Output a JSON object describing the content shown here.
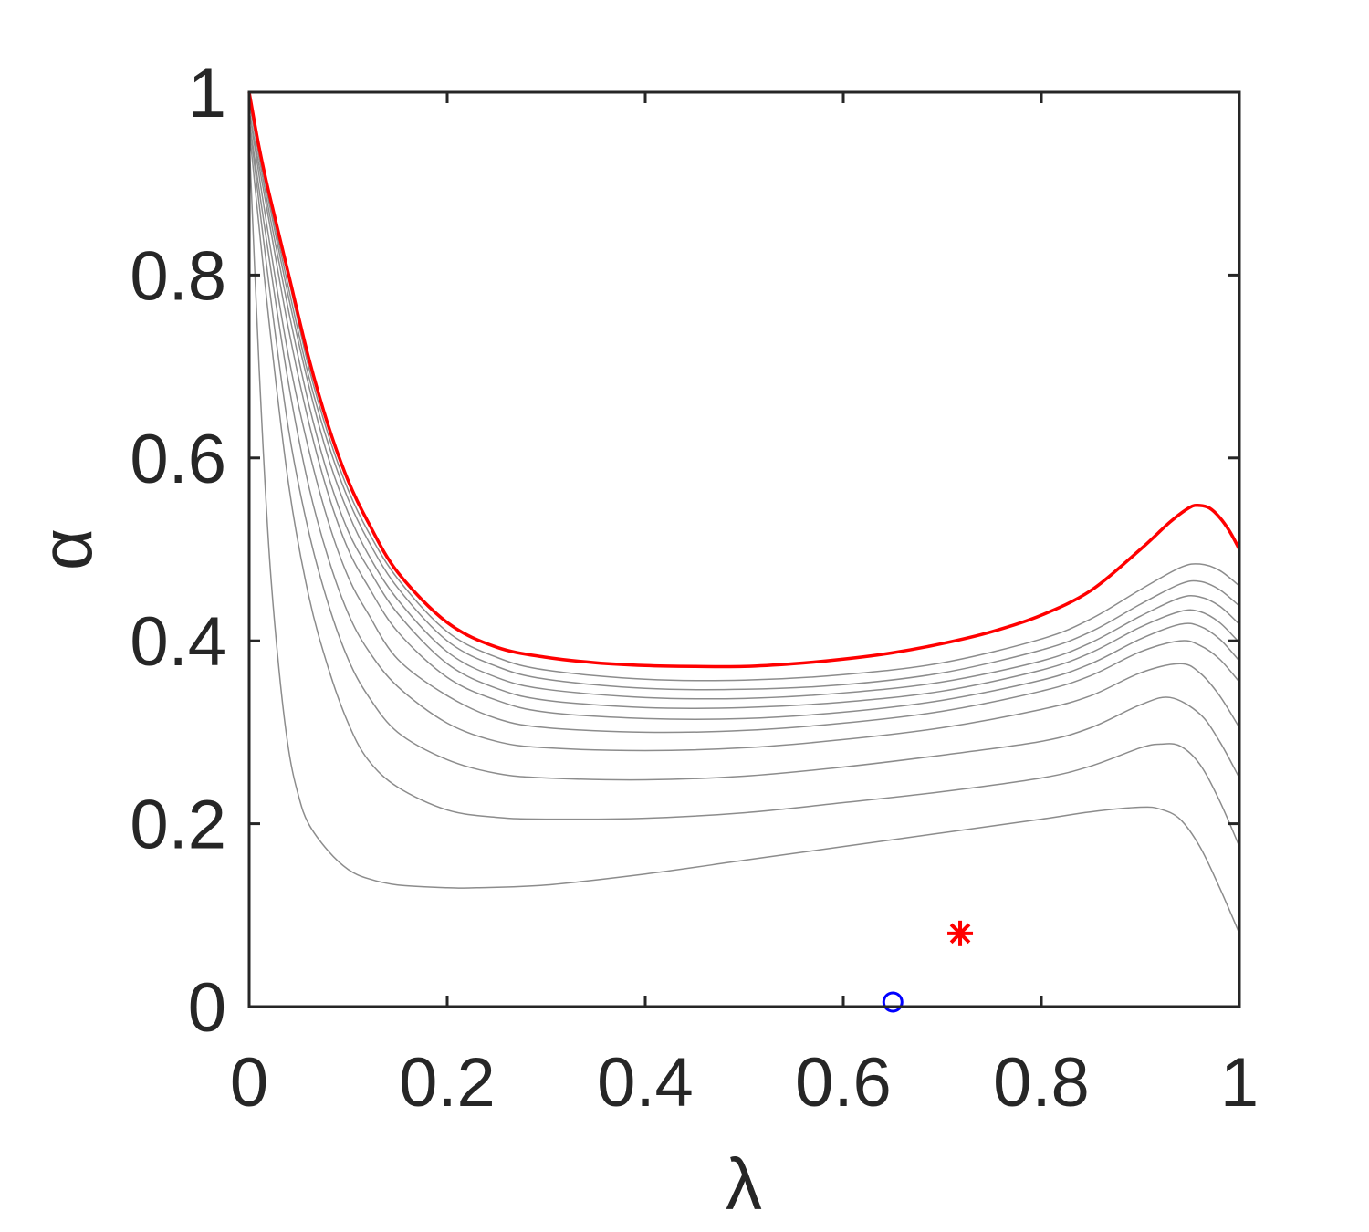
{
  "chart_data": {
    "type": "line",
    "title": "",
    "xlabel": "λ",
    "ylabel": "α",
    "xlim": [
      0,
      1
    ],
    "ylim": [
      0,
      1
    ],
    "xticks": [
      "0",
      "0.2",
      "0.4",
      "0.6",
      "0.8",
      "1"
    ],
    "yticks": [
      "0",
      "0.2",
      "0.4",
      "0.6",
      "0.8",
      "1"
    ],
    "grid": false,
    "series": [
      {
        "color": "#8c8c8c",
        "x": [
          0,
          0.01,
          0.02,
          0.03,
          0.04,
          0.05,
          0.06,
          0.08,
          0.1,
          0.12,
          0.15,
          0.2,
          0.23,
          0.3,
          0.4,
          0.5,
          0.6,
          0.7,
          0.8,
          0.85,
          0.9,
          0.92,
          0.94,
          0.96,
          0.98,
          1.0
        ],
        "y": [
          0.95,
          0.7,
          0.5,
          0.37,
          0.28,
          0.23,
          0.2,
          0.17,
          0.15,
          0.14,
          0.133,
          0.13,
          0.13,
          0.133,
          0.145,
          0.16,
          0.175,
          0.19,
          0.205,
          0.213,
          0.218,
          0.216,
          0.205,
          0.175,
          0.13,
          0.08
        ]
      },
      {
        "color": "#8c8c8c",
        "x": [
          0,
          0.02,
          0.04,
          0.06,
          0.08,
          0.1,
          0.12,
          0.15,
          0.2,
          0.25,
          0.3,
          0.4,
          0.5,
          0.6,
          0.7,
          0.8,
          0.85,
          0.9,
          0.92,
          0.94,
          0.96,
          0.98,
          1.0
        ],
        "y": [
          0.96,
          0.75,
          0.57,
          0.45,
          0.37,
          0.31,
          0.27,
          0.24,
          0.215,
          0.207,
          0.205,
          0.206,
          0.212,
          0.223,
          0.235,
          0.25,
          0.263,
          0.283,
          0.287,
          0.285,
          0.265,
          0.225,
          0.175
        ]
      },
      {
        "color": "#8c8c8c",
        "x": [
          0,
          0.02,
          0.04,
          0.06,
          0.08,
          0.1,
          0.12,
          0.15,
          0.2,
          0.25,
          0.3,
          0.4,
          0.5,
          0.6,
          0.7,
          0.8,
          0.85,
          0.9,
          0.93,
          0.96,
          0.98,
          1.0
        ],
        "y": [
          0.97,
          0.79,
          0.63,
          0.52,
          0.44,
          0.38,
          0.34,
          0.3,
          0.27,
          0.255,
          0.25,
          0.248,
          0.252,
          0.262,
          0.275,
          0.29,
          0.305,
          0.33,
          0.338,
          0.32,
          0.29,
          0.25
        ]
      },
      {
        "color": "#8c8c8c",
        "x": [
          0,
          0.02,
          0.04,
          0.06,
          0.08,
          0.1,
          0.12,
          0.15,
          0.2,
          0.25,
          0.3,
          0.4,
          0.5,
          0.6,
          0.7,
          0.8,
          0.85,
          0.9,
          0.94,
          0.96,
          0.98,
          1.0
        ],
        "y": [
          0.97,
          0.82,
          0.68,
          0.57,
          0.49,
          0.43,
          0.39,
          0.35,
          0.31,
          0.29,
          0.283,
          0.28,
          0.283,
          0.292,
          0.305,
          0.325,
          0.34,
          0.365,
          0.375,
          0.365,
          0.34,
          0.305
        ]
      },
      {
        "color": "#8c8c8c",
        "x": [
          0,
          0.02,
          0.04,
          0.06,
          0.08,
          0.1,
          0.12,
          0.15,
          0.2,
          0.25,
          0.3,
          0.4,
          0.5,
          0.6,
          0.7,
          0.8,
          0.85,
          0.9,
          0.94,
          0.96,
          0.98,
          1.0
        ],
        "y": [
          0.98,
          0.84,
          0.71,
          0.61,
          0.53,
          0.47,
          0.43,
          0.38,
          0.34,
          0.315,
          0.305,
          0.3,
          0.302,
          0.31,
          0.323,
          0.345,
          0.362,
          0.388,
          0.4,
          0.395,
          0.38,
          0.355
        ]
      },
      {
        "color": "#8c8c8c",
        "x": [
          0,
          0.02,
          0.04,
          0.06,
          0.08,
          0.1,
          0.12,
          0.15,
          0.2,
          0.25,
          0.3,
          0.4,
          0.5,
          0.6,
          0.7,
          0.8,
          0.85,
          0.9,
          0.94,
          0.96,
          0.98,
          1.0
        ],
        "y": [
          0.98,
          0.86,
          0.74,
          0.64,
          0.56,
          0.5,
          0.46,
          0.41,
          0.36,
          0.335,
          0.322,
          0.315,
          0.315,
          0.322,
          0.335,
          0.357,
          0.375,
          0.402,
          0.418,
          0.416,
          0.402,
          0.378
        ]
      },
      {
        "color": "#8c8c8c",
        "x": [
          0,
          0.02,
          0.04,
          0.06,
          0.08,
          0.1,
          0.12,
          0.15,
          0.2,
          0.25,
          0.3,
          0.4,
          0.5,
          0.6,
          0.7,
          0.8,
          0.85,
          0.9,
          0.94,
          0.96,
          0.98,
          1.0
        ],
        "y": [
          0.99,
          0.87,
          0.76,
          0.66,
          0.58,
          0.52,
          0.48,
          0.43,
          0.375,
          0.348,
          0.335,
          0.327,
          0.327,
          0.333,
          0.345,
          0.368,
          0.387,
          0.415,
          0.432,
          0.432,
          0.42,
          0.398
        ]
      },
      {
        "color": "#8c8c8c",
        "x": [
          0,
          0.02,
          0.04,
          0.06,
          0.08,
          0.1,
          0.12,
          0.15,
          0.2,
          0.25,
          0.3,
          0.4,
          0.5,
          0.6,
          0.7,
          0.8,
          0.85,
          0.9,
          0.94,
          0.96,
          0.98,
          1.0
        ],
        "y": [
          0.99,
          0.88,
          0.775,
          0.68,
          0.6,
          0.54,
          0.495,
          0.445,
          0.388,
          0.36,
          0.347,
          0.338,
          0.337,
          0.343,
          0.355,
          0.378,
          0.398,
          0.427,
          0.447,
          0.448,
          0.438,
          0.418
        ]
      },
      {
        "color": "#8c8c8c",
        "x": [
          0,
          0.02,
          0.04,
          0.06,
          0.08,
          0.1,
          0.12,
          0.15,
          0.2,
          0.25,
          0.3,
          0.4,
          0.5,
          0.6,
          0.7,
          0.8,
          0.85,
          0.9,
          0.94,
          0.96,
          0.98,
          1.0
        ],
        "y": [
          0.99,
          0.885,
          0.785,
          0.69,
          0.615,
          0.555,
          0.51,
          0.458,
          0.4,
          0.372,
          0.358,
          0.348,
          0.347,
          0.352,
          0.365,
          0.39,
          0.41,
          0.44,
          0.462,
          0.465,
          0.456,
          0.438
        ]
      },
      {
        "color": "#8c8c8c",
        "x": [
          0,
          0.02,
          0.04,
          0.06,
          0.08,
          0.1,
          0.12,
          0.15,
          0.2,
          0.25,
          0.3,
          0.4,
          0.5,
          0.6,
          0.7,
          0.8,
          0.85,
          0.9,
          0.94,
          0.96,
          0.98,
          1.0
        ],
        "y": [
          1.0,
          0.89,
          0.795,
          0.7,
          0.625,
          0.565,
          0.52,
          0.468,
          0.41,
          0.382,
          0.368,
          0.358,
          0.357,
          0.363,
          0.376,
          0.402,
          0.424,
          0.456,
          0.48,
          0.484,
          0.477,
          0.46
        ]
      },
      {
        "color": "#ff0000",
        "x": [
          0,
          0.01,
          0.02,
          0.04,
          0.06,
          0.08,
          0.1,
          0.12,
          0.15,
          0.2,
          0.25,
          0.3,
          0.35,
          0.4,
          0.45,
          0.5,
          0.55,
          0.6,
          0.65,
          0.7,
          0.75,
          0.8,
          0.85,
          0.9,
          0.93,
          0.95,
          0.96,
          0.97,
          0.98,
          0.99,
          1.0
        ],
        "y": [
          1.0,
          0.94,
          0.89,
          0.8,
          0.71,
          0.635,
          0.575,
          0.53,
          0.475,
          0.42,
          0.393,
          0.382,
          0.376,
          0.373,
          0.372,
          0.372,
          0.375,
          0.38,
          0.387,
          0.397,
          0.41,
          0.428,
          0.455,
          0.5,
          0.53,
          0.546,
          0.548,
          0.545,
          0.535,
          0.52,
          0.5
        ]
      }
    ],
    "markers": [
      {
        "shape": "circle",
        "color": "#0000ff",
        "x": 0.65,
        "y": 0.005
      },
      {
        "shape": "asterisk",
        "color": "#ff0000",
        "x": 0.718,
        "y": 0.08
      }
    ]
  }
}
